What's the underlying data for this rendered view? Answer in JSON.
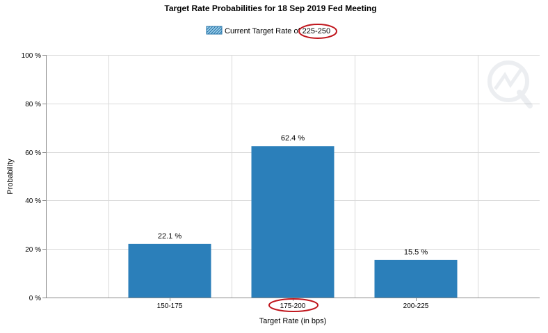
{
  "chart_data": {
    "type": "bar",
    "title": "Target Rate Probabilities for 18 Sep 2019 Fed Meeting",
    "legend": {
      "label": "Current Target Rate of 225-250",
      "placement": "top-center"
    },
    "xlabel": "Target Rate (in bps)",
    "ylabel": "Probability",
    "categories": [
      "150-175",
      "175-200",
      "200-225"
    ],
    "values": [
      22.1,
      62.4,
      15.5
    ],
    "value_labels": [
      "22.1 %",
      "62.4 %",
      "15.5 %"
    ],
    "ylim": [
      0,
      100
    ],
    "yticks": [
      0,
      20,
      40,
      60,
      80,
      100
    ],
    "ytick_labels": [
      "0 %",
      "20 %",
      "40 %",
      "60 %",
      "80 %",
      "100 %"
    ],
    "grid": true,
    "bar_color": "#2b7fba",
    "annotation_color": "#c0161d",
    "highlighted": [
      "225-250",
      "175-200"
    ]
  }
}
